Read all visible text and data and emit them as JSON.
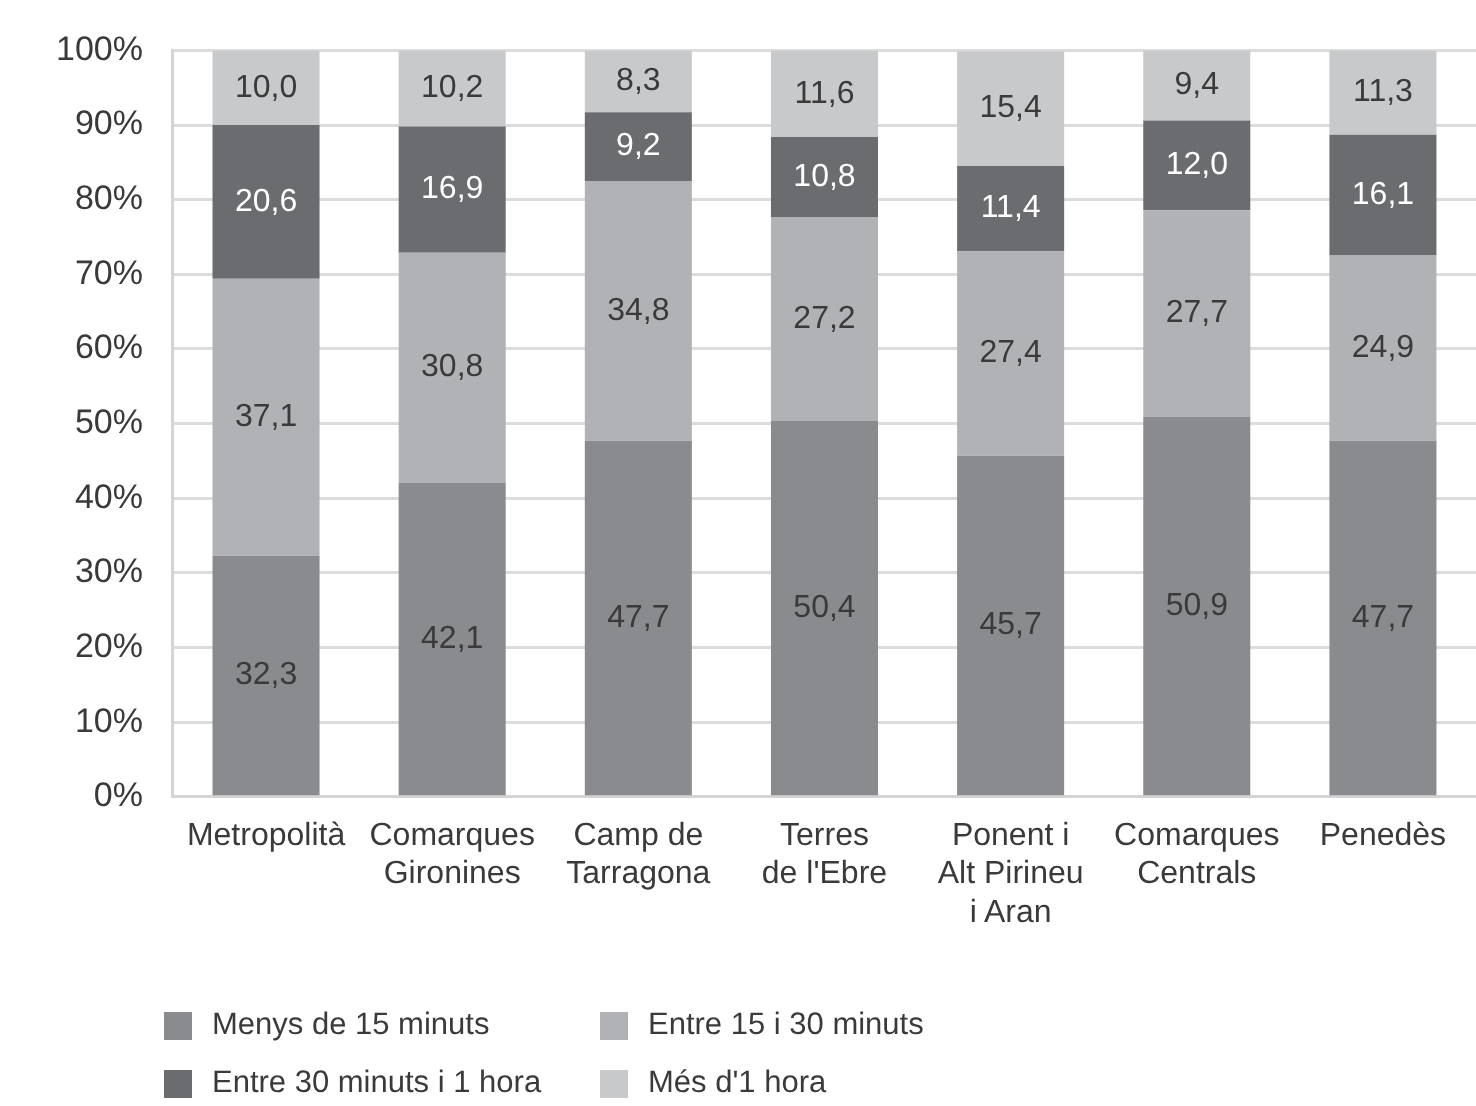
{
  "chart_data": {
    "type": "bar",
    "stacked": true,
    "categories": [
      "Metropolità",
      "Comarques\nGironines",
      "Camp de\nTarragona",
      "Terres\nde l'Ebre",
      "Ponent i\nAlt Pirineu\ni Aran",
      "Comarques\nCentrals",
      "Penedès"
    ],
    "series": [
      {
        "name": "Menys de 15 minuts",
        "color": "#8a8b8e",
        "values": [
          32.3,
          42.1,
          47.7,
          50.4,
          45.7,
          50.9,
          47.7
        ],
        "value_labels": [
          "32,3",
          "42,1",
          "47,7",
          "50,4",
          "45,7",
          "50,9",
          "47,7"
        ]
      },
      {
        "name": "Entre 15 i 30 minuts",
        "color": "#b1b2b5",
        "values": [
          37.1,
          30.8,
          34.8,
          27.2,
          27.4,
          27.7,
          24.9
        ],
        "value_labels": [
          "37,1",
          "30,8",
          "34,8",
          "27,2",
          "27,4",
          "27,7",
          "24,9"
        ]
      },
      {
        "name": "Entre 30 minuts i 1 hora",
        "color": "#6b6c6f",
        "values": [
          20.6,
          16.9,
          9.2,
          10.8,
          11.4,
          12.0,
          16.1
        ],
        "value_labels": [
          "20,6",
          "16,9",
          "9,2",
          "10,8",
          "11,4",
          "12,0",
          "16,1"
        ]
      },
      {
        "name": "Més d'1 hora",
        "color": "#c8c9cb",
        "values": [
          10.0,
          10.2,
          8.3,
          11.6,
          15.4,
          9.4,
          11.3
        ],
        "value_labels": [
          "10,0",
          "10,2",
          "8,3",
          "11,6",
          "15,4",
          "9,4",
          "11,3"
        ]
      }
    ],
    "ylim": [
      0,
      100
    ],
    "yticks": [
      {
        "value": 0,
        "label": "0%"
      },
      {
        "value": 10,
        "label": "10%"
      },
      {
        "value": 20,
        "label": "20%"
      },
      {
        "value": 30,
        "label": "30%"
      },
      {
        "value": 40,
        "label": "40%"
      },
      {
        "value": 50,
        "label": "50%"
      },
      {
        "value": 60,
        "label": "60%"
      },
      {
        "value": 70,
        "label": "70%"
      },
      {
        "value": 80,
        "label": "80%"
      },
      {
        "value": 90,
        "label": "90%"
      },
      {
        "value": 100,
        "label": "100%"
      }
    ],
    "grid": "y",
    "legend": "bottom"
  }
}
